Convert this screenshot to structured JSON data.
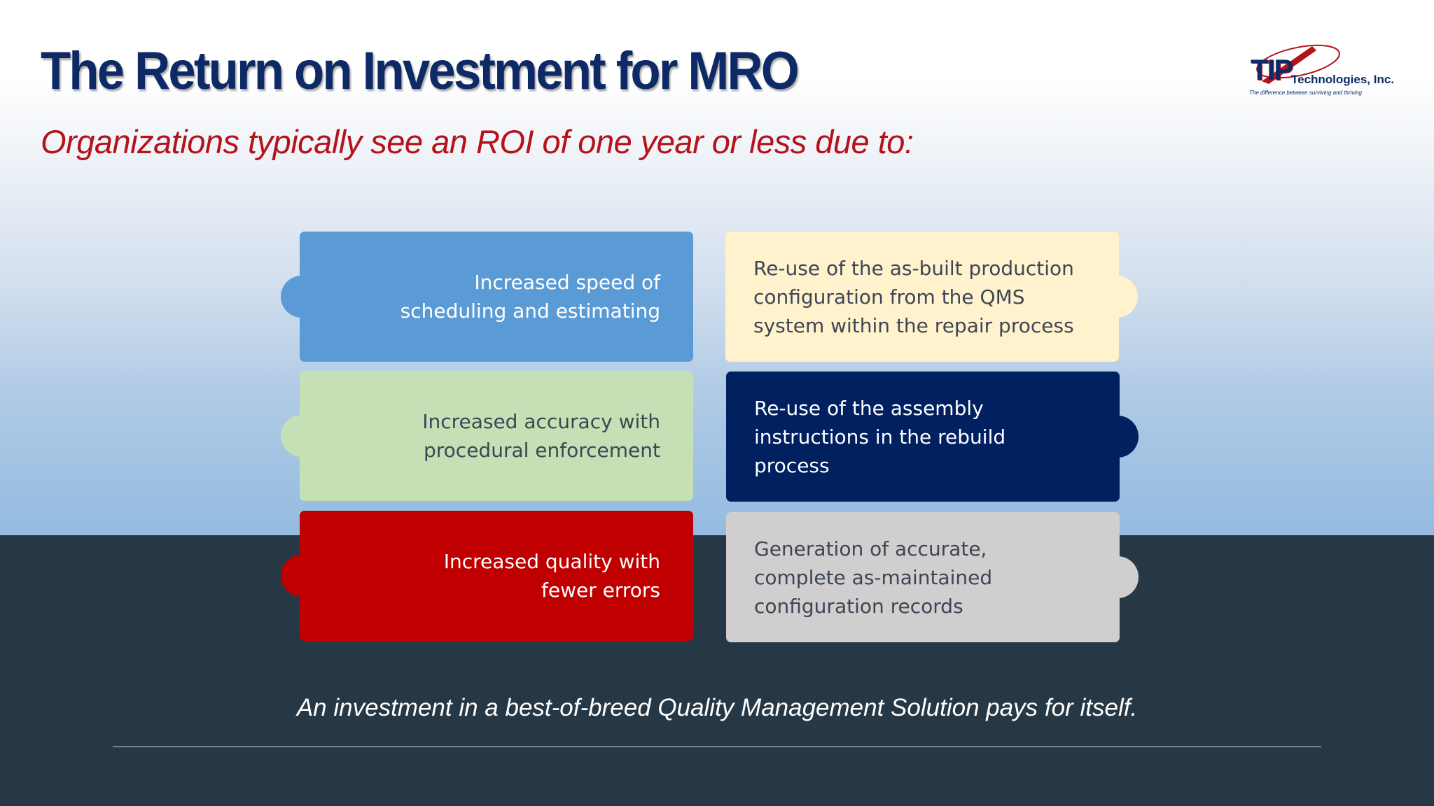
{
  "slide": {
    "title": "The Return on Investment for MRO",
    "subtitle": "Organizations typically see an ROI of one year or less due to:",
    "logo": {
      "mark": "TIP",
      "name": "Technologies, Inc.",
      "tagline": "The difference between surviving and thriving"
    },
    "tiles": [
      {
        "text": "Increased speed of scheduling and estimating",
        "color": "#5b9bd5"
      },
      {
        "text": "Increased accuracy with procedural enforcement",
        "color": "#c5e0b4"
      },
      {
        "text": "Increased quality with fewer errors",
        "color": "#c00000"
      },
      {
        "text": "Re-use of the as-built production configuration from the QMS system within the repair process",
        "color": "#fff2cc"
      },
      {
        "text": "Re-use of the assembly instructions in the rebuild process",
        "color": "#002060"
      },
      {
        "text": "Generation of accurate, complete as-maintained configuration records",
        "color": "#d0cece"
      }
    ],
    "footer": "An investment in a best-of-breed Quality Management Solution pays for itself.",
    "colors": {
      "title": "#0e2a66",
      "subtitle": "#b5121b",
      "dark_band": "#263846"
    }
  }
}
